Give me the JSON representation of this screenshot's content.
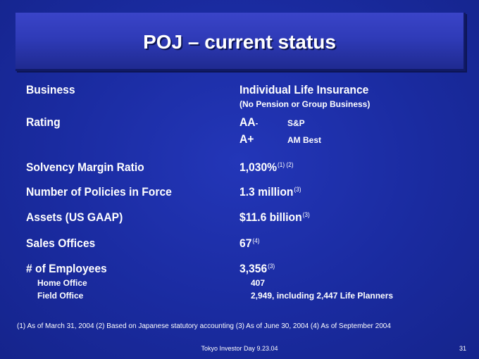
{
  "title": "POJ – current status",
  "rows": {
    "business": {
      "label": "Business",
      "value": "Individual Life Insurance",
      "note": "(No Pension or Group Business)"
    },
    "rating": {
      "label": "Rating",
      "items": [
        {
          "grade": "AA",
          "suffix": "-",
          "agency": "S&P"
        },
        {
          "grade": "A+",
          "suffix": "",
          "agency": "AM Best"
        }
      ]
    },
    "solvency": {
      "label": "Solvency Margin Ratio",
      "value": "1,030%",
      "ref": "(1) (2)"
    },
    "policies": {
      "label": "Number of Policies in Force",
      "value": "1.3 million",
      "ref": "(3)"
    },
    "assets": {
      "label": "Assets (US GAAP)",
      "value": "$11.6 billion",
      "ref": "(3)"
    },
    "sales": {
      "label": "Sales Offices",
      "value": "67",
      "ref": "(4)"
    },
    "employees": {
      "label": "# of Employees",
      "value": "3,356",
      "ref": "(3)",
      "breakdown": [
        {
          "label": "Home Office",
          "value": "407"
        },
        {
          "label": "Field Office",
          "value": "2,949, including 2,447 Life Planners"
        }
      ]
    }
  },
  "footnote": "(1) As of March 31, 2004 (2) Based on Japanese statutory accounting (3) As of June 30, 2004 (4) As of September 2004",
  "footer": {
    "event": "Tokyo Investor Day 9.23.04",
    "page": "31"
  }
}
